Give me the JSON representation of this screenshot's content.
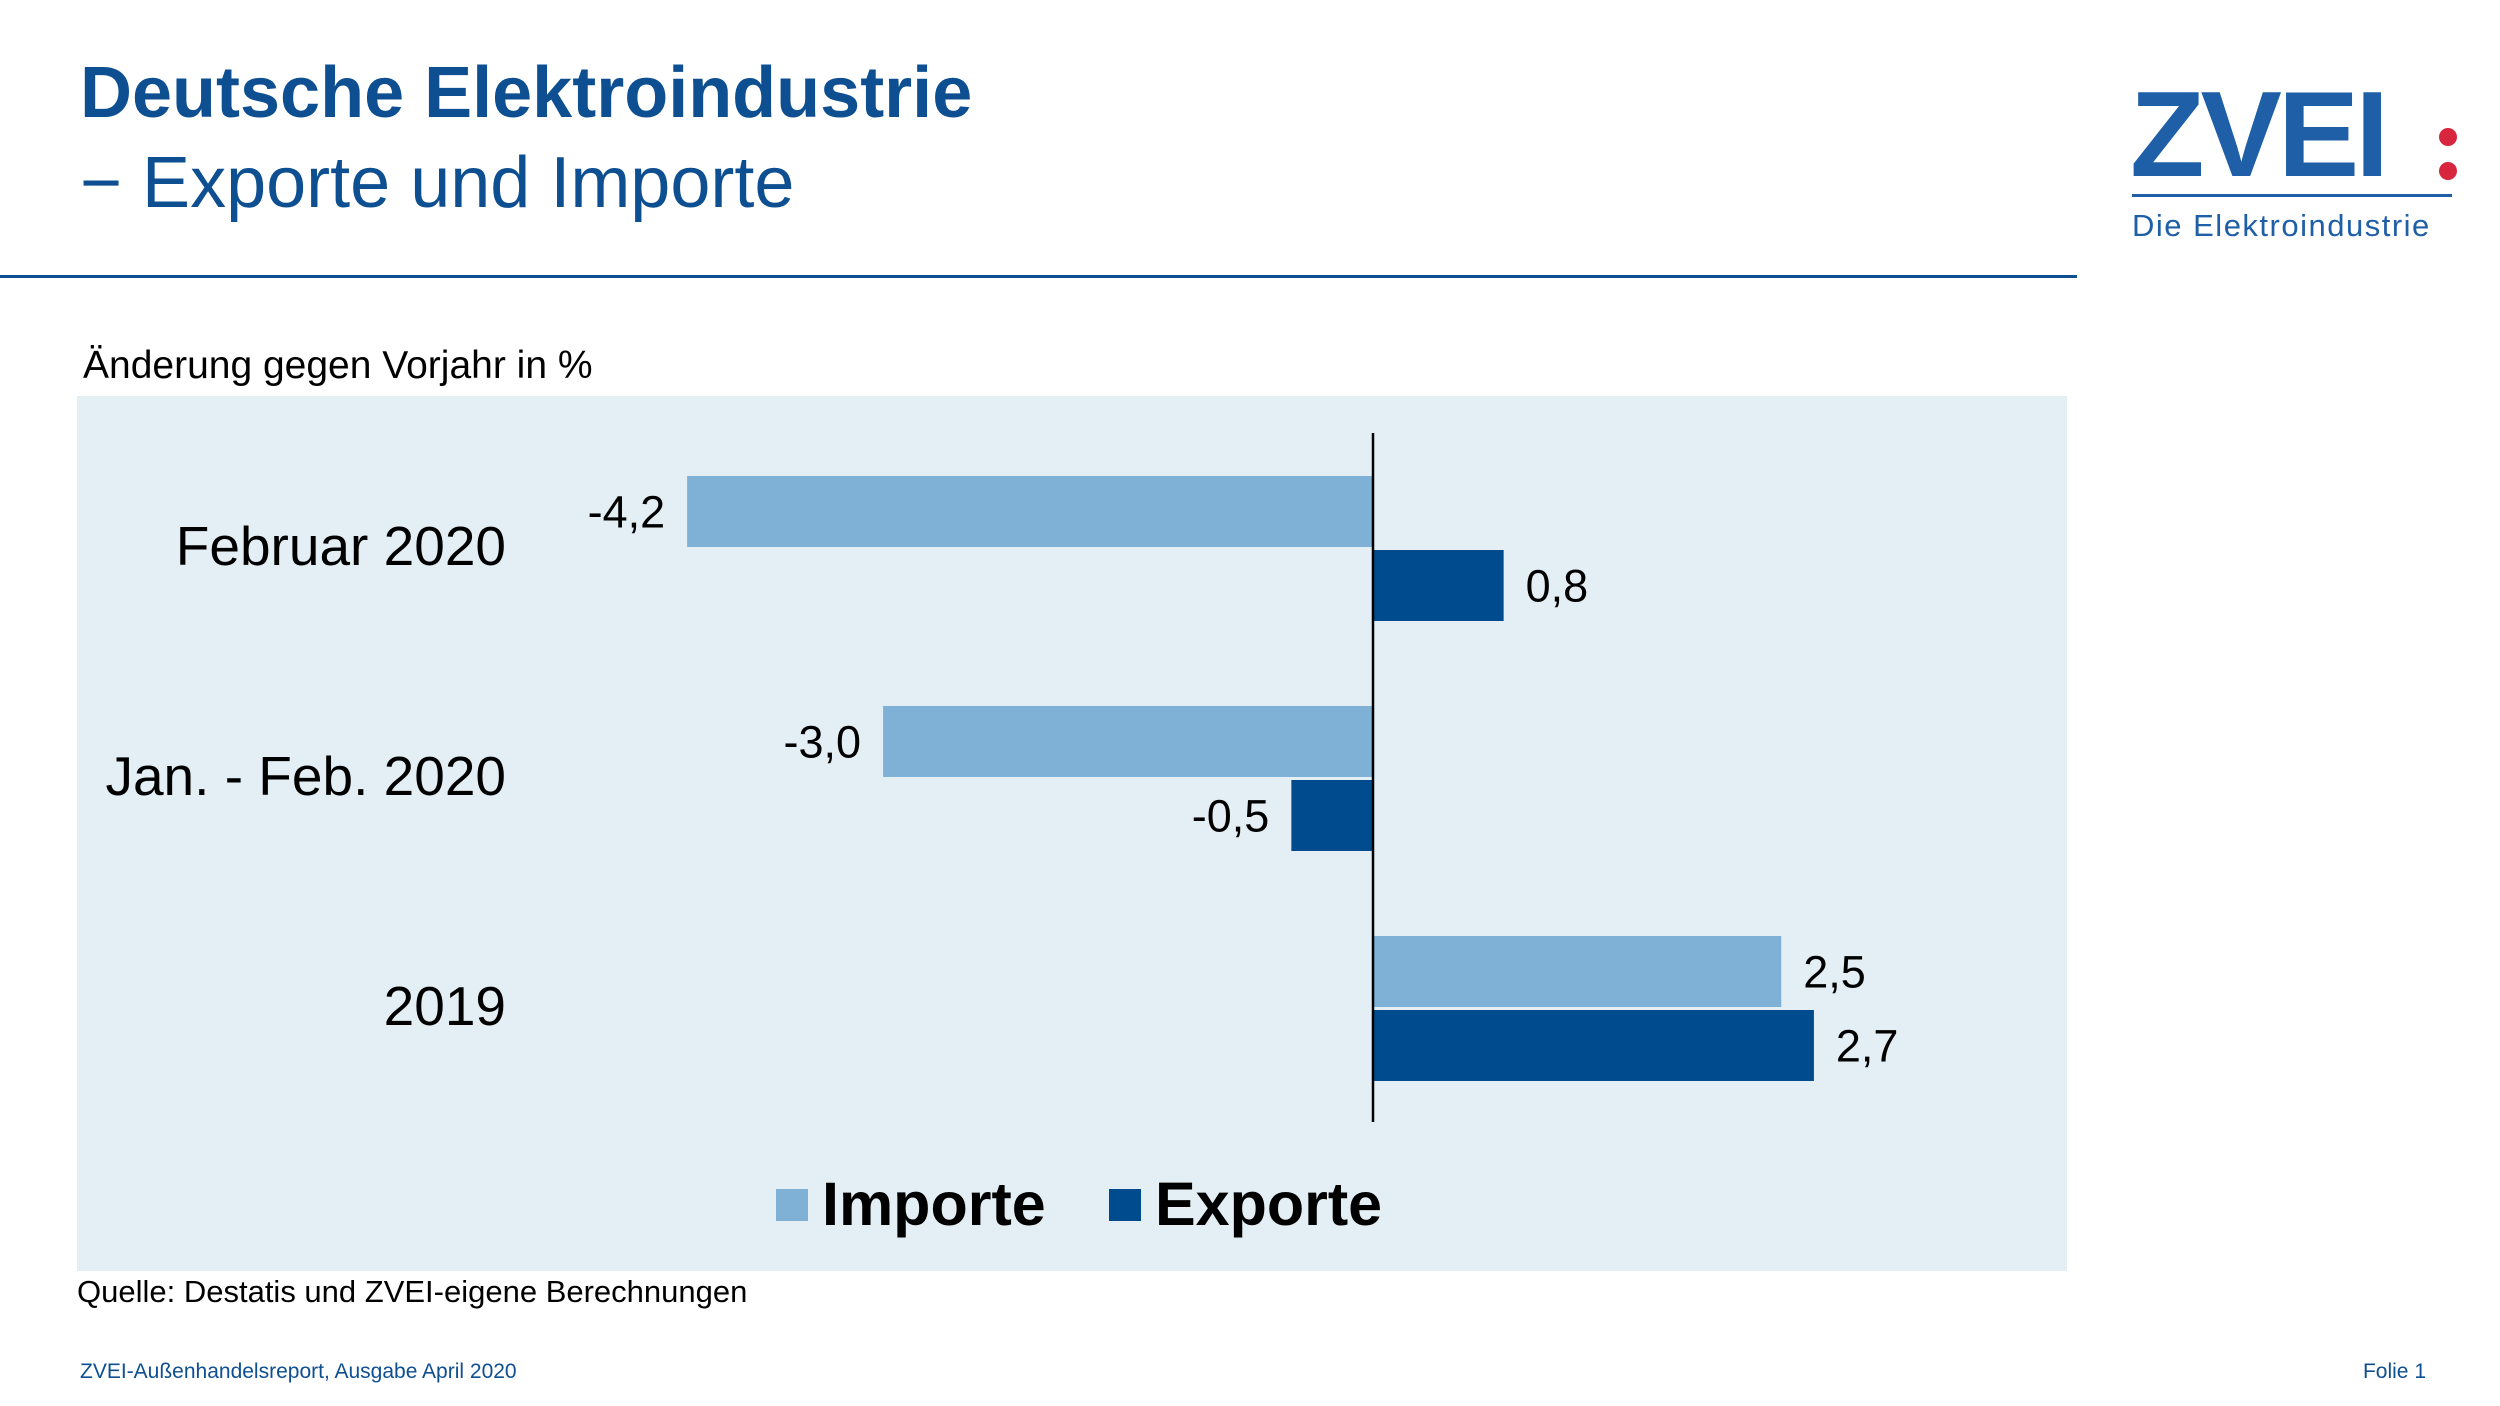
{
  "header": {
    "title": "Deutsche Elektroindustrie",
    "subtitle": "− Exporte und Importe"
  },
  "logo": {
    "wordmark": "ZVEI",
    "tagline": "Die Elektroindustrie",
    "brand_color": "#1f5fa8",
    "dot_color": "#d7263d"
  },
  "chart_data": {
    "type": "bar",
    "orientation": "horizontal",
    "title": "",
    "ylabel": "Änderung gegen Vorjahr in %",
    "categories": [
      "Februar 2020",
      "Jan. - Feb. 2020",
      "2019"
    ],
    "series": [
      {
        "name": "Importe",
        "values": [
          -4.2,
          -3.0,
          2.5
        ],
        "labels": [
          "-4,2",
          "-3,0",
          "2,5"
        ],
        "color": "#7fb0d5"
      },
      {
        "name": "Exporte",
        "values": [
          0.8,
          -0.5,
          2.7
        ],
        "labels": [
          "0,8",
          "-0,5",
          "2,7"
        ],
        "color": "#004b8d"
      }
    ],
    "xlim": [
      -5.2,
      3.5
    ],
    "grid": false,
    "legend": "bottom",
    "background": "#e3eff4"
  },
  "source": "Quelle: Destatis und ZVEI-eigene Berechnungen",
  "footer": {
    "left": "ZVEI-Außenhandelsreport, Ausgabe April 2020",
    "right": "Folie 1"
  }
}
